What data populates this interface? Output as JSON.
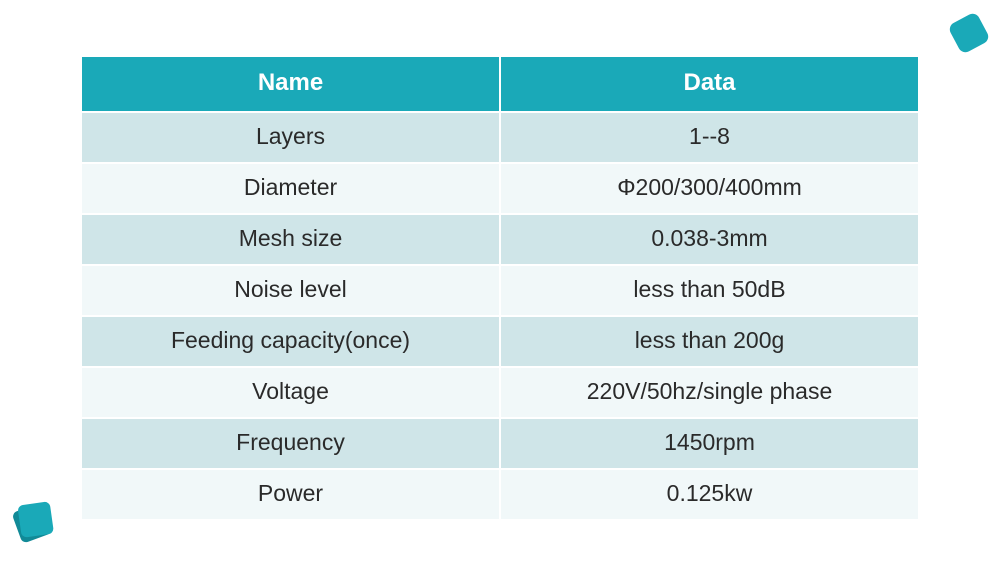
{
  "colors": {
    "header_bg": "#1aa9b8",
    "row_odd": "#cfe5e8",
    "row_even": "#f1f8f9",
    "header_text": "#ffffff",
    "cell_text": "#2a2a2a",
    "deco_main": "#1aa9b8",
    "deco_shadow": "#118a97"
  },
  "table": {
    "columns": [
      "Name",
      "Data"
    ],
    "rows": [
      [
        "Layers",
        "1--8"
      ],
      [
        "Diameter",
        "Φ200/300/400mm"
      ],
      [
        "Mesh size",
        "0.038-3mm"
      ],
      [
        "Noise level",
        "less than 50dB"
      ],
      [
        "Feeding capacity(once)",
        "less than 200g"
      ],
      [
        "Voltage",
        "220V/50hz/single phase"
      ],
      [
        "Frequency",
        "1450rpm"
      ],
      [
        "Power",
        "0.125kw"
      ]
    ],
    "header_fontsize": 24,
    "cell_fontsize": 23
  }
}
